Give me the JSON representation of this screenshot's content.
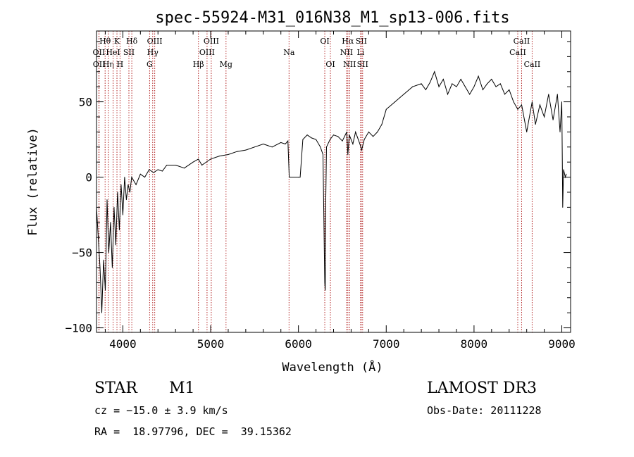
{
  "chart_data": {
    "type": "line",
    "title": "spec-55924-M31_016N38_M1_sp13-006.fits",
    "xlabel": "Wavelength (Å)",
    "ylabel": "Flux (relative)",
    "xlim": [
      3700,
      9100
    ],
    "ylim": [
      -103,
      97
    ],
    "xticks": [
      4000,
      5000,
      6000,
      7000,
      8000,
      9000
    ],
    "yticks": [
      -100,
      -50,
      0,
      50
    ],
    "series": [
      {
        "name": "flux",
        "x": [
          3700,
          3720,
          3740,
          3760,
          3780,
          3800,
          3820,
          3840,
          3860,
          3880,
          3900,
          3920,
          3940,
          3960,
          3980,
          4000,
          4020,
          4040,
          4060,
          4080,
          4100,
          4150,
          4200,
          4250,
          4300,
          4350,
          4400,
          4450,
          4500,
          4600,
          4700,
          4800,
          4860,
          4900,
          5000,
          5100,
          5200,
          5300,
          5400,
          5500,
          5600,
          5700,
          5800,
          5850,
          5880,
          5895,
          5900,
          6000,
          6020,
          6050,
          6100,
          6150,
          6200,
          6250,
          6280,
          6300,
          6305,
          6310,
          6320,
          6360,
          6400,
          6450,
          6500,
          6550,
          6563,
          6580,
          6620,
          6650,
          6700,
          6720,
          6750,
          6800,
          6850,
          6900,
          6950,
          7000,
          7100,
          7200,
          7300,
          7400,
          7450,
          7500,
          7550,
          7600,
          7650,
          7700,
          7750,
          7800,
          7850,
          7900,
          7950,
          8000,
          8050,
          8100,
          8150,
          8200,
          8250,
          8300,
          8350,
          8400,
          8450,
          8498,
          8542,
          8600,
          8662,
          8700,
          8750,
          8800,
          8850,
          8900,
          8950,
          8980,
          9000,
          9010,
          9020,
          9040,
          9050
        ],
        "values": [
          -20,
          -40,
          -60,
          -90,
          -55,
          -75,
          -15,
          -50,
          -30,
          -60,
          -20,
          -45,
          -10,
          -35,
          -5,
          -25,
          0,
          -15,
          -5,
          -10,
          0,
          -5,
          2,
          0,
          5,
          3,
          5,
          4,
          8,
          8,
          6,
          10,
          12,
          8,
          12,
          14,
          15,
          17,
          18,
          20,
          22,
          20,
          23,
          22,
          24,
          0,
          0,
          0,
          0,
          25,
          28,
          26,
          25,
          20,
          15,
          -70,
          -75,
          -20,
          20,
          25,
          28,
          27,
          24,
          30,
          15,
          28,
          22,
          30,
          22,
          18,
          25,
          30,
          27,
          30,
          35,
          45,
          50,
          55,
          60,
          62,
          58,
          63,
          70,
          60,
          65,
          55,
          62,
          60,
          65,
          60,
          55,
          60,
          67,
          58,
          62,
          65,
          60,
          62,
          55,
          58,
          50,
          45,
          48,
          30,
          50,
          35,
          48,
          40,
          55,
          38,
          55,
          30,
          50,
          -20,
          5,
          0,
          2
        ]
      }
    ],
    "spectral_lines": [
      {
        "label": "Hθ",
        "wavelength": 3798,
        "row": 1
      },
      {
        "label": "OII",
        "wavelength": 3727,
        "row": 2
      },
      {
        "label": "OII",
        "wavelength": 3729,
        "row": 3
      },
      {
        "label": "Hη",
        "wavelength": 3835,
        "row": 3
      },
      {
        "label": "K",
        "wavelength": 3933,
        "row": 1
      },
      {
        "label": "HeI",
        "wavelength": 3889,
        "row": 2
      },
      {
        "label": "SII",
        "wavelength": 4069,
        "row": 2
      },
      {
        "label": "H",
        "wavelength": 3968,
        "row": 3
      },
      {
        "label": "Hδ",
        "wavelength": 4102,
        "row": 1
      },
      {
        "label": "OIII",
        "wavelength": 4363,
        "row": 1
      },
      {
        "label": "Hγ",
        "wavelength": 4340,
        "row": 2
      },
      {
        "label": "G",
        "wavelength": 4305,
        "row": 3
      },
      {
        "label": "Hβ",
        "wavelength": 4861,
        "row": 3
      },
      {
        "label": "OIII",
        "wavelength": 5007,
        "row": 1
      },
      {
        "label": "OIII",
        "wavelength": 4959,
        "row": 2
      },
      {
        "label": "Mg",
        "wavelength": 5175,
        "row": 3
      },
      {
        "label": "Na",
        "wavelength": 5893,
        "row": 2
      },
      {
        "label": "OI",
        "wavelength": 6300,
        "row": 1
      },
      {
        "label": "OI",
        "wavelength": 6364,
        "row": 3
      },
      {
        "label": "Hα",
        "wavelength": 6563,
        "row": 1
      },
      {
        "label": "NII",
        "wavelength": 6548,
        "row": 2
      },
      {
        "label": "NII",
        "wavelength": 6583,
        "row": 3
      },
      {
        "label": "SII",
        "wavelength": 6716,
        "row": 1
      },
      {
        "label": "Li",
        "wavelength": 6708,
        "row": 2
      },
      {
        "label": "SII",
        "wavelength": 6731,
        "row": 3
      },
      {
        "label": "CaII",
        "wavelength": 8542,
        "row": 1
      },
      {
        "label": "CaII",
        "wavelength": 8498,
        "row": 2
      },
      {
        "label": "CaII",
        "wavelength": 8662,
        "row": 3
      }
    ],
    "colors": {
      "spectrum": "#000000",
      "line_marker": "#b22222"
    }
  },
  "info": {
    "object_class": "STAR",
    "subclass": "M1",
    "survey": "LAMOST DR3",
    "cz": "cz = −15.0 ± 3.9 km/s",
    "obs_date": "Obs-Date: 20111228",
    "coords": "RA =  18.97796, DEC =  39.15362"
  }
}
